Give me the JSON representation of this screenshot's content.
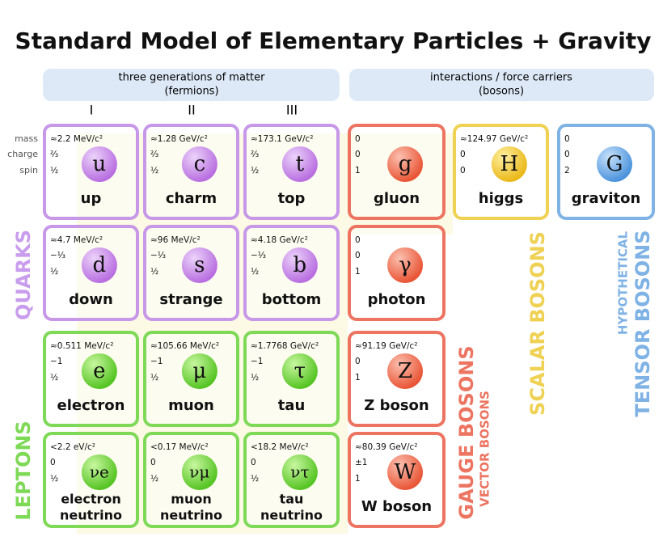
{
  "title": "Standard Model of Elementary Particles + Gravity",
  "headers": [
    {
      "label": "three generations of matter",
      "sublabel": "(fermions)"
    },
    {
      "label": "interactions / force carriers",
      "sublabel": "(bosons)"
    }
  ],
  "generations": [
    "I",
    "II",
    "III"
  ],
  "property_labels": [
    "mass",
    "charge",
    "spin"
  ],
  "particles": [
    {
      "symbol": "u",
      "name": [
        "up"
      ],
      "mass": "≈2.2 MeV/c²",
      "charge": "⅔",
      "spin": "½"
    },
    {
      "symbol": "c",
      "name": [
        "charm"
      ],
      "mass": "≈1.28 GeV/c²",
      "charge": "⅔",
      "spin": "½"
    },
    {
      "symbol": "t",
      "name": [
        "top"
      ],
      "mass": "≈173.1 GeV/c²",
      "charge": "⅔",
      "spin": "½"
    },
    {
      "symbol": "d",
      "name": [
        "down"
      ],
      "mass": "≈4.7 MeV/c²",
      "charge": "−⅓",
      "spin": "½"
    },
    {
      "symbol": "s",
      "name": [
        "strange"
      ],
      "mass": "≈96 MeV/c²",
      "charge": "−⅓",
      "spin": "½"
    },
    {
      "symbol": "b",
      "name": [
        "bottom"
      ],
      "mass": "≈4.18 GeV/c²",
      "charge": "−⅓",
      "spin": "½"
    },
    {
      "symbol": "e",
      "name": [
        "electron"
      ],
      "mass": "≈0.511 MeV/c²",
      "charge": "−1",
      "spin": "½"
    },
    {
      "symbol": "μ",
      "name": [
        "muon"
      ],
      "mass": "≈105.66 MeV/c²",
      "charge": "−1",
      "spin": "½"
    },
    {
      "symbol": "τ",
      "name": [
        "tau"
      ],
      "mass": "≈1.7768 GeV/c²",
      "charge": "−1",
      "spin": "½"
    },
    {
      "symbol": "νe",
      "name": [
        "electron",
        "neutrino"
      ],
      "mass": "<2.2 eV/c²",
      "charge": "0",
      "spin": "½"
    },
    {
      "symbol": "νμ",
      "name": [
        "muon",
        "neutrino"
      ],
      "mass": "<0.17 MeV/c²",
      "charge": "0",
      "spin": "½"
    },
    {
      "symbol": "ντ",
      "name": [
        "tau",
        "neutrino"
      ],
      "mass": "<18.2 MeV/c²",
      "charge": "0",
      "spin": "½"
    },
    {
      "symbol": "g",
      "name": [
        "gluon"
      ],
      "mass": "0",
      "charge": "0",
      "spin": "1"
    },
    {
      "symbol": "γ",
      "name": [
        "photon"
      ],
      "mass": "0",
      "charge": "0",
      "spin": "1"
    },
    {
      "symbol": "Z",
      "name": [
        "Z boson"
      ],
      "mass": "≈91.19 GeV/c²",
      "charge": "0",
      "spin": "1"
    },
    {
      "symbol": "W",
      "name": [
        "W boson"
      ],
      "mass": "≈80.39 GeV/c²",
      "charge": "±1",
      "spin": "1"
    },
    {
      "symbol": "H",
      "name": [
        "higgs"
      ],
      "mass": "≈124.97 GeV/c²",
      "charge": "0",
      "spin": "0"
    },
    {
      "symbol": "G",
      "name": [
        "graviton"
      ],
      "mass": "0",
      "charge": "0",
      "spin": "2"
    }
  ],
  "group_labels": [
    "QUARKS",
    "LEPTONS",
    "GAUGE BOSONS",
    "VECTOR BOSONS",
    "SCALAR BOSONS",
    "HYPOTHETICAL",
    "TENSOR BOSONS"
  ]
}
